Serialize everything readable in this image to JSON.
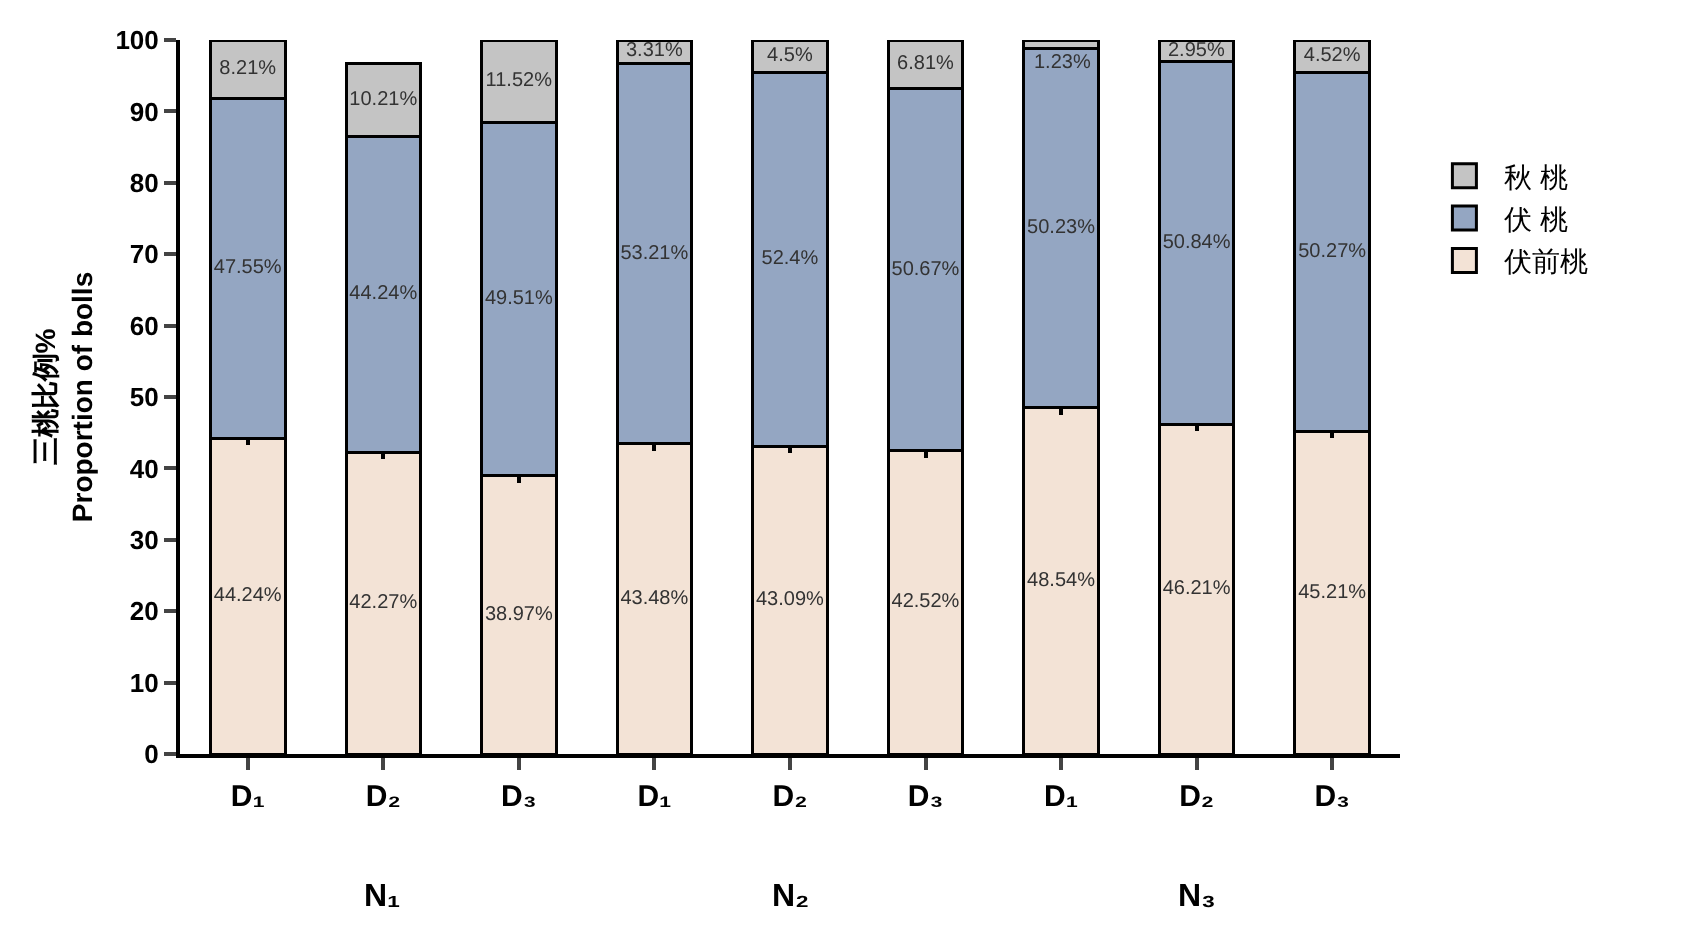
{
  "chart_data": {
    "type": "bar",
    "stacked": true,
    "ylabel": "三桃比例%\nProportion of bolls",
    "categories": [
      "D₁",
      "D₂",
      "D₃",
      "D₁",
      "D₂",
      "D₃",
      "D₁",
      "D₂",
      "D₃"
    ],
    "annotations": [
      "N₁",
      "N₂",
      "N₃"
    ],
    "series": [
      {
        "name": "伏前桃",
        "color": "#f3e3d6",
        "values": [
          44.24,
          42.27,
          38.97,
          43.48,
          43.09,
          42.52,
          48.54,
          46.21,
          45.21
        ],
        "errors": [
          1,
          1,
          1,
          1,
          1,
          1,
          1,
          1,
          1
        ],
        "value_labels": [
          "44.24%",
          "42.27%",
          "38.97%",
          "43.48%",
          "43.09%",
          "42.52%",
          "48.54%",
          "46.21%",
          "45.21%"
        ]
      },
      {
        "name": "伏 桃",
        "color": "#94a6c2",
        "values": [
          47.55,
          44.24,
          49.51,
          53.21,
          52.4,
          50.67,
          50.23,
          50.84,
          50.27
        ],
        "value_labels": [
          "47.55%",
          "44.24%",
          "49.51%",
          "53.21%",
          "52.4%",
          "50.67%",
          "50.23%",
          "50.84%",
          "50.27%"
        ]
      },
      {
        "name": "秋 桃",
        "color": "#c4c4c4",
        "values": [
          8.21,
          10.21,
          11.52,
          3.31,
          4.5,
          6.81,
          1.23,
          2.95,
          4.52
        ],
        "value_labels": [
          "8.21%",
          "10.21%",
          "11.52%",
          "3.31%",
          "4.5%",
          "6.81%",
          "1.23%",
          "2.95%",
          "4.52%"
        ]
      }
    ],
    "ylim": [
      0,
      100
    ],
    "yticks": [
      0,
      10,
      20,
      30,
      40,
      50,
      60,
      70,
      80,
      90,
      100
    ],
    "grid": false,
    "legend": "right"
  }
}
